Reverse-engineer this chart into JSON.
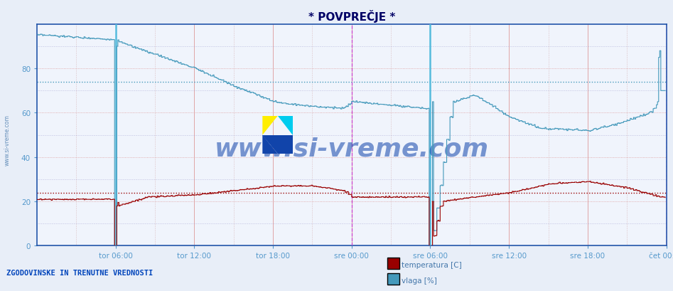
{
  "title": "* POVPREČJE *",
  "background_color": "#e8eef8",
  "plot_bg_color": "#f0f4fc",
  "ylabel_color": "#5599cc",
  "title_color": "#000066",
  "ylim": [
    0,
    100
  ],
  "yticks": [
    0,
    20,
    40,
    60,
    80
  ],
  "xlabel_labels": [
    "tor 06:00",
    "tor 12:00",
    "tor 18:00",
    "sre 00:00",
    "sre 06:00",
    "sre 12:00",
    "sre 18:00",
    "čet 00:00"
  ],
  "temp_color": "#990000",
  "humidity_color": "#4499bb",
  "grid_major_color": "#dd9999",
  "grid_minor_color": "#cc9999",
  "grid_minor_h_color": "#9999cc",
  "hline_temp": 24,
  "hline_humidity": 74,
  "legend_text1": "temperatura [C]",
  "legend_text2": "vlaga [%]",
  "bottom_text": "ZGODOVINSKE IN TRENUTNE VREDNOSTI",
  "watermark": "www.si-vreme.com",
  "n_points": 576
}
